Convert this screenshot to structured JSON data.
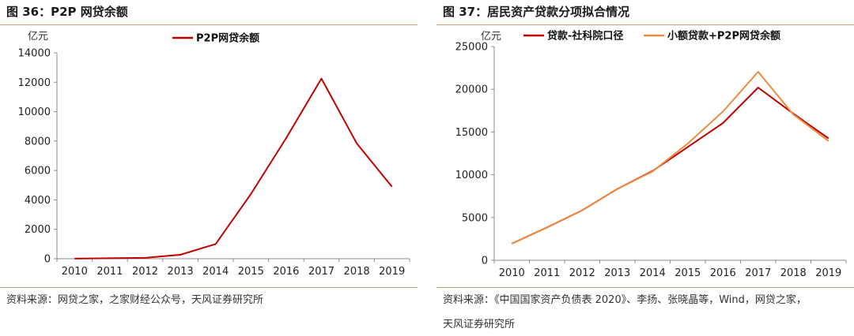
{
  "figures": [
    {
      "title": "图 36：P2P 网贷余额",
      "source": "资料来源：网贷之家，之家财经公众号，天风证券研究所",
      "source_line2": ""
    },
    {
      "title": "图 37：居民资产贷款分项拟合情况",
      "source": "资料来源：《中国国家资产负债表 2020》、李扬、张晓晶等，Wind，网贷之家，",
      "source_line2": "天风证券研究所"
    }
  ],
  "chart_data": [
    {
      "type": "line",
      "title": "",
      "xlabel": "",
      "ylabel": "亿元",
      "x": [
        "2010",
        "2011",
        "2012",
        "2013",
        "2014",
        "2015",
        "2016",
        "2017",
        "2018",
        "2019"
      ],
      "ylim": [
        0,
        14000
      ],
      "yticks": [
        0,
        2000,
        4000,
        6000,
        8000,
        10000,
        12000,
        14000
      ],
      "grid": false,
      "legend": "top-center",
      "series": [
        {
          "name": "P2P网贷余额",
          "color": "#c00000",
          "values": [
            5,
            30,
            60,
            270,
            1000,
            4400,
            8200,
            12250,
            7850,
            4900
          ]
        }
      ]
    },
    {
      "type": "line",
      "title": "",
      "xlabel": "",
      "ylabel": "亿元",
      "x": [
        "2010",
        "2011",
        "2012",
        "2013",
        "2014",
        "2015",
        "2016",
        "2017",
        "2018",
        "2019"
      ],
      "ylim": [
        0,
        25000
      ],
      "yticks": [
        0,
        5000,
        10000,
        15000,
        20000,
        25000
      ],
      "grid": false,
      "legend": "top-center",
      "series": [
        {
          "name": "贷款-社科院口径",
          "color": "#c00000",
          "values": [
            1950,
            3850,
            5850,
            8350,
            10450,
            13250,
            16050,
            20200,
            17150,
            14250
          ]
        },
        {
          "name": "小额贷款+P2P网贷余额",
          "color": "#ed8c3e",
          "values": [
            1950,
            3850,
            5850,
            8350,
            10400,
            13650,
            17400,
            22050,
            17050,
            13950
          ]
        }
      ]
    }
  ]
}
